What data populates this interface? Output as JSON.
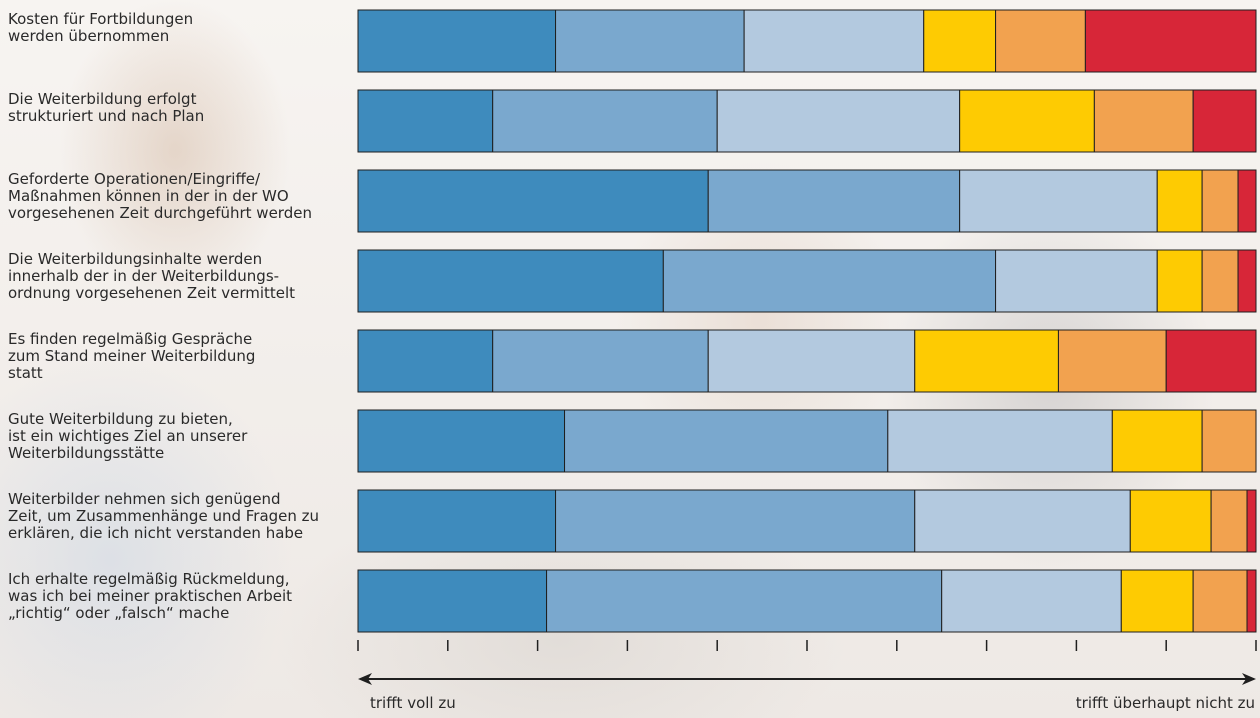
{
  "chart_data": {
    "type": "bar",
    "stacked": true,
    "orientation": "horizontal",
    "normalized_to": 100,
    "categories": [
      "Kosten für Fortbildungen\nwerden übernommen",
      "Die Weiterbildung erfolgt\nstrukturiert und nach Plan",
      "Geforderte Operationen/Eingriffe/\nMaßnahmen können in der in der WO\nvorgesehenen Zeit durchgeführt werden",
      "Die Weiterbildungsinhalte werden\ninnerhalb der in der Weiterbildungs-\nordnung vorgesehenen Zeit vermittelt",
      "Es finden regelmäßig Gespräche\nzum Stand meiner Weiterbildung\nstatt",
      "Gute Weiterbildung zu bieten,\nist ein wichtiges Ziel an unserer\nWeiterbildungsstätte",
      "Weiterbilder nehmen sich genügend\nZeit, um Zusammenhänge und Fragen zu\nerklären, die ich nicht verstanden habe",
      "Ich erhalte regelmäßig Rückmeldung,\nwas ich bei meiner praktischen Arbeit\n„richtig“ oder „falsch“ mache"
    ],
    "series": [
      {
        "values": [
          22,
          15,
          39,
          34,
          15,
          23,
          22,
          21
        ],
        "color": "#3e8bbd"
      },
      {
        "values": [
          21,
          25,
          28,
          37,
          24,
          36,
          40,
          44
        ],
        "color": "#7aa8ce"
      },
      {
        "values": [
          20,
          27,
          22,
          18,
          23,
          25,
          24,
          20
        ],
        "color": "#b3c9df"
      },
      {
        "values": [
          8,
          15,
          5,
          5,
          16,
          10,
          9,
          8
        ],
        "color": "#fecb02"
      },
      {
        "values": [
          10,
          11,
          4,
          4,
          12,
          6,
          4,
          6
        ],
        "color": "#f2a24f"
      },
      {
        "values": [
          19,
          7,
          2,
          2,
          10,
          0,
          1,
          1
        ],
        "color": "#d72638"
      }
    ],
    "xlim": [
      0,
      100
    ],
    "tick_count": 10,
    "axis_start_label": "trifft voll zu",
    "axis_end_label": "trifft überhaupt nicht zu",
    "grid": false,
    "legend": "none"
  }
}
